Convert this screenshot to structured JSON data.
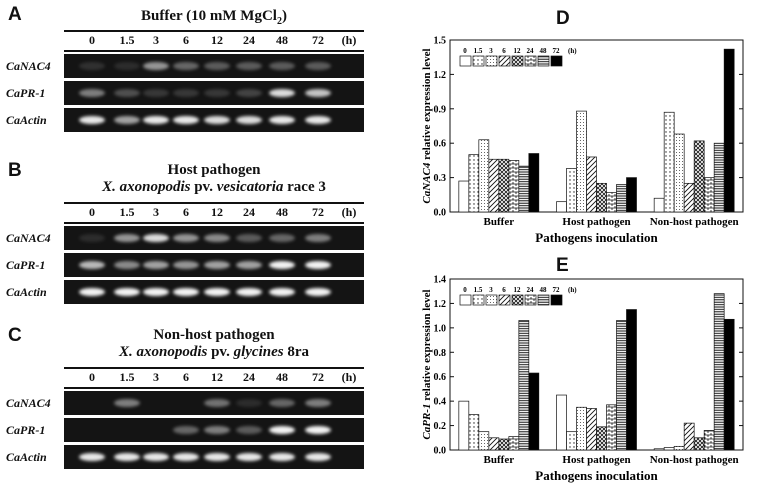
{
  "lane_labels": [
    "0",
    "1.5",
    "3",
    "6",
    "12",
    "24",
    "48",
    "72",
    "(h)"
  ],
  "gel_panels": [
    {
      "letter": "A",
      "title_line1": "Buffer (10 mM MgCl",
      "title_sub": "2",
      "title_line1_end": ")",
      "title_line2_prefix": "",
      "title_line2_italic": "",
      "title_line2_mid": "",
      "title_line2_italic2": "",
      "title_line2_suffix": "",
      "genes": [
        {
          "name": "CaNAC4",
          "intensity": [
            0.12,
            0.1,
            0.55,
            0.35,
            0.3,
            0.3,
            0.3,
            0.3
          ]
        },
        {
          "name": "CaPR-1",
          "intensity": [
            0.45,
            0.25,
            0.15,
            0.15,
            0.15,
            0.2,
            0.85,
            0.75
          ]
        },
        {
          "name": "CaActin",
          "intensity": [
            0.9,
            0.6,
            0.9,
            0.9,
            0.85,
            0.85,
            0.9,
            0.9
          ]
        }
      ]
    },
    {
      "letter": "B",
      "title_line1": "Host pathogen",
      "title_sub": "",
      "title_line1_end": "",
      "title_line2_prefix": "",
      "title_line2_italic": "X. axonopodis",
      "title_line2_mid": " pv. ",
      "title_line2_italic2": "vesicatoria",
      "title_line2_suffix": " race 3",
      "genes": [
        {
          "name": "CaNAC4",
          "intensity": [
            0.1,
            0.55,
            0.85,
            0.55,
            0.5,
            0.3,
            0.35,
            0.45
          ]
        },
        {
          "name": "CaPR-1",
          "intensity": [
            0.7,
            0.5,
            0.6,
            0.55,
            0.6,
            0.6,
            0.95,
            0.95
          ]
        },
        {
          "name": "CaActin",
          "intensity": [
            0.95,
            0.95,
            0.95,
            0.95,
            0.95,
            0.95,
            0.95,
            0.95
          ]
        }
      ]
    },
    {
      "letter": "C",
      "title_line1": "Non-host pathogen",
      "title_sub": "",
      "title_line1_end": "",
      "title_line2_prefix": "",
      "title_line2_italic": "X. axonopodis",
      "title_line2_mid": " pv. ",
      "title_line2_italic2": "glycines",
      "title_line2_suffix": " 8ra",
      "genes": [
        {
          "name": "CaNAC4",
          "intensity": [
            0.0,
            0.45,
            0.0,
            0.0,
            0.4,
            0.1,
            0.35,
            0.45
          ]
        },
        {
          "name": "CaPR-1",
          "intensity": [
            0.0,
            0.0,
            0.0,
            0.35,
            0.45,
            0.3,
            0.95,
            0.95
          ]
        },
        {
          "name": "CaActin",
          "intensity": [
            0.9,
            0.9,
            0.9,
            0.9,
            0.9,
            0.9,
            0.9,
            0.9
          ]
        }
      ]
    }
  ],
  "colors": {
    "gel_background": "#141414",
    "band": "#ffffff"
  },
  "chart_data": [
    {
      "panel": "D",
      "type": "bar",
      "ylabel_italic": "CaNAC4",
      "ylabel_rest": " relative expression level",
      "xlabel": "Pathogens inoculation",
      "categories": [
        "Buffer",
        "Host pathogen",
        "Non-host pathogen"
      ],
      "ylim": [
        0,
        1.5
      ],
      "yticks": [
        "0.0",
        "0.3",
        "0.6",
        "0.9",
        "1.2",
        "1.5"
      ],
      "ytick_values": [
        0,
        0.3,
        0.6,
        0.9,
        1.2,
        1.5
      ],
      "legend_unit": "(h)",
      "series": [
        {
          "name": "0",
          "pattern": "blank",
          "values": [
            0.27,
            0.09,
            0.12
          ]
        },
        {
          "name": "1.5",
          "pattern": "dots",
          "values": [
            0.5,
            0.38,
            0.87
          ]
        },
        {
          "name": "3",
          "pattern": "finedots",
          "values": [
            0.63,
            0.88,
            0.68
          ]
        },
        {
          "name": "6",
          "pattern": "diag",
          "values": [
            0.46,
            0.48,
            0.25
          ]
        },
        {
          "name": "12",
          "pattern": "cross",
          "values": [
            0.46,
            0.25,
            0.62
          ]
        },
        {
          "name": "24",
          "pattern": "brick",
          "values": [
            0.45,
            0.17,
            0.3
          ]
        },
        {
          "name": "48",
          "pattern": "hlines",
          "values": [
            0.4,
            0.24,
            0.6
          ]
        },
        {
          "name": "72",
          "pattern": "solid",
          "values": [
            0.51,
            0.3,
            1.42
          ]
        }
      ]
    },
    {
      "panel": "E",
      "type": "bar",
      "ylabel_italic": "CaPR-1",
      "ylabel_rest": " relative expression level",
      "xlabel": "Pathogens inoculation",
      "categories": [
        "Buffer",
        "Host pathogen",
        "Non-host pathogen"
      ],
      "ylim": [
        0,
        1.4
      ],
      "yticks": [
        "0.0",
        "0.2",
        "0.4",
        "0.6",
        "0.8",
        "1.0",
        "1.2",
        "1.4"
      ],
      "ytick_values": [
        0,
        0.2,
        0.4,
        0.6,
        0.8,
        1.0,
        1.2,
        1.4
      ],
      "legend_unit": "(h)",
      "series": [
        {
          "name": "0",
          "pattern": "blank",
          "values": [
            0.4,
            0.45,
            0.01
          ]
        },
        {
          "name": "1.5",
          "pattern": "dots",
          "values": [
            0.29,
            0.15,
            0.02
          ]
        },
        {
          "name": "3",
          "pattern": "finedots",
          "values": [
            0.15,
            0.35,
            0.03
          ]
        },
        {
          "name": "6",
          "pattern": "diag",
          "values": [
            0.1,
            0.34,
            0.22
          ]
        },
        {
          "name": "12",
          "pattern": "cross",
          "values": [
            0.09,
            0.19,
            0.1
          ]
        },
        {
          "name": "24",
          "pattern": "brick",
          "values": [
            0.11,
            0.37,
            0.16
          ]
        },
        {
          "name": "48",
          "pattern": "hlines",
          "values": [
            1.06,
            1.06,
            1.28
          ]
        },
        {
          "name": "72",
          "pattern": "solid",
          "values": [
            0.63,
            1.15,
            1.07
          ]
        }
      ]
    }
  ]
}
